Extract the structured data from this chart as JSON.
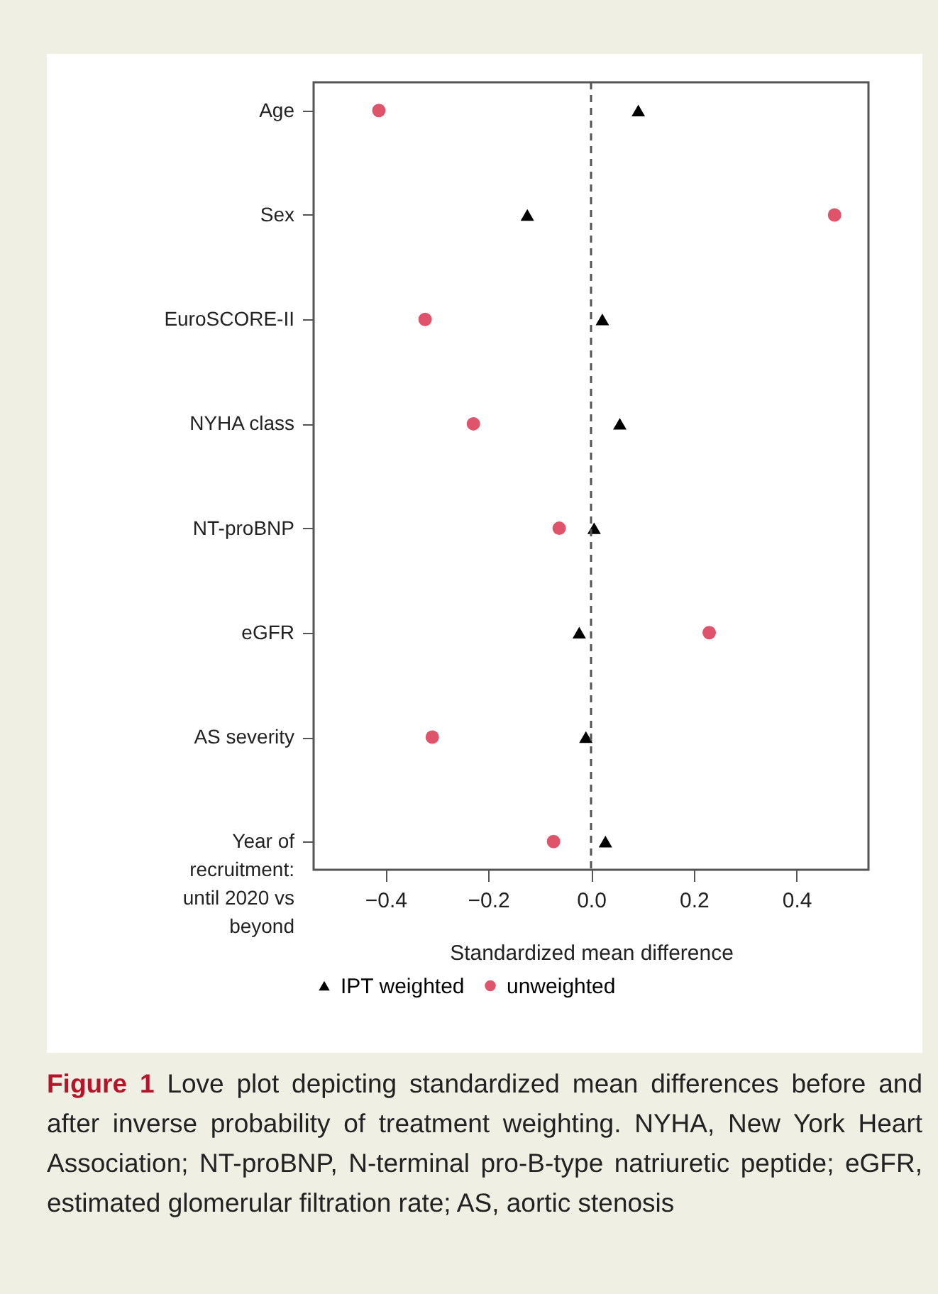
{
  "chart_data": {
    "type": "scatter",
    "xlabel": "Standardized mean difference",
    "categories": [
      "Age",
      "Sex",
      "EuroSCORE-II",
      "NYHA class",
      "NT-proBNP",
      "eGFR",
      "AS severity",
      "Year of recruitment: until 2020 vs beyond"
    ],
    "orientation": "horizontal",
    "series": [
      {
        "name": "IPT weighted",
        "color": "#000000",
        "marker": "triangle",
        "values": [
          0.092,
          -0.124,
          0.022,
          0.056,
          0.006,
          -0.023,
          -0.01,
          0.028
        ]
      },
      {
        "name": "unweighted",
        "color": "#df536b",
        "marker": "circle",
        "values": [
          -0.413,
          0.474,
          -0.323,
          -0.229,
          -0.062,
          0.23,
          -0.309,
          -0.073
        ]
      }
    ],
    "xlim": [
      -0.54,
      0.54
    ],
    "xticks": [
      {
        "value": -0.4,
        "label": "−0.4"
      },
      {
        "value": -0.2,
        "label": "−0.2"
      },
      {
        "value": 0,
        "label": "0.0"
      },
      {
        "value": 0.2,
        "label": "0.2"
      },
      {
        "value": 0.4,
        "label": "0.4"
      }
    ],
    "ref_lines": [
      {
        "axis": "x",
        "value": 0,
        "line_style": "dashed",
        "color": "#555555"
      }
    ],
    "grid": false,
    "legend": "bottom",
    "annotations": [
      "Figure 1",
      "Love plot depicting standardized mean differences before and after inverse probability of treatment weighting. NYHA, New York Heart Association; NT-proBNP, N-terminal pro-B-type natriuretic peptide; eGFR, estimated glomerular filtration rate; AS, aortic stenosis"
    ]
  }
}
